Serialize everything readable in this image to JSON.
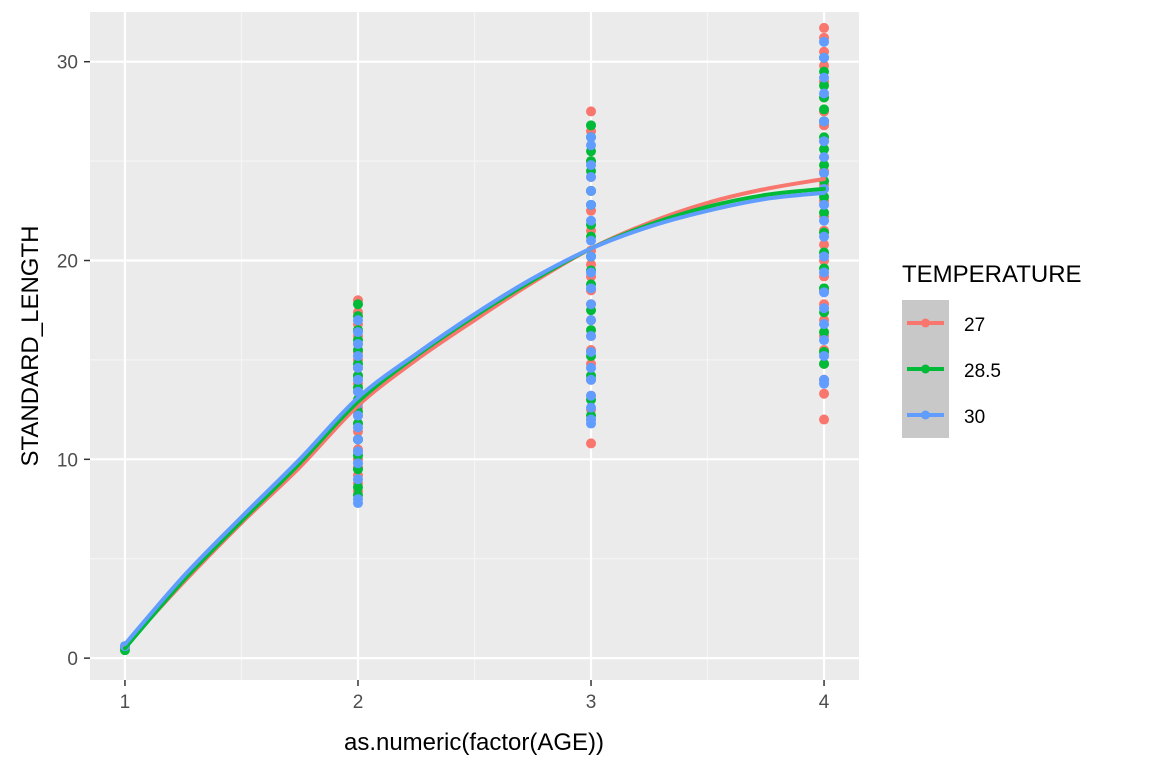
{
  "chart_data": {
    "type": "scatter",
    "xlabel": "as.numeric(factor(AGE))",
    "ylabel": "STANDARD_LENGTH",
    "xlim": [
      0.85,
      4.15
    ],
    "ylim": [
      -1.1,
      32.5
    ],
    "x_ticks": [
      1,
      2,
      3,
      4
    ],
    "y_ticks": [
      0,
      10,
      20,
      30
    ],
    "grid": true,
    "background": "#ebebeb",
    "legend": {
      "title": "TEMPERATURE",
      "placement": "right"
    },
    "series": [
      {
        "name": "27",
        "color": "#f8766d",
        "points": [
          [
            1,
            0.6
          ],
          [
            1,
            0.5
          ],
          [
            2,
            18.0
          ],
          [
            2,
            17.4
          ],
          [
            2,
            16.8
          ],
          [
            2,
            16.2
          ],
          [
            2,
            15.8
          ],
          [
            2,
            15.4
          ],
          [
            2,
            15.0
          ],
          [
            2,
            14.6
          ],
          [
            2,
            14.2
          ],
          [
            2,
            13.8
          ],
          [
            2,
            13.4
          ],
          [
            2,
            13.0
          ],
          [
            2,
            12.6
          ],
          [
            2,
            12.2
          ],
          [
            2,
            11.8
          ],
          [
            2,
            11.4
          ],
          [
            2,
            11.0
          ],
          [
            2,
            10.5
          ],
          [
            2,
            10.0
          ],
          [
            2,
            9.6
          ],
          [
            2,
            9.2
          ],
          [
            2,
            8.8
          ],
          [
            2,
            8.4
          ],
          [
            3,
            27.5
          ],
          [
            3,
            26.5
          ],
          [
            3,
            25.0
          ],
          [
            3,
            24.2
          ],
          [
            3,
            23.5
          ],
          [
            3,
            22.5
          ],
          [
            3,
            21.5
          ],
          [
            3,
            20.5
          ],
          [
            3,
            19.8
          ],
          [
            3,
            19.2
          ],
          [
            3,
            18.5
          ],
          [
            3,
            17.8
          ],
          [
            3,
            17.0
          ],
          [
            3,
            16.2
          ],
          [
            3,
            15.5
          ],
          [
            3,
            14.8
          ],
          [
            3,
            14.0
          ],
          [
            3,
            13.2
          ],
          [
            3,
            12.5
          ],
          [
            3,
            12.0
          ],
          [
            3,
            10.8
          ],
          [
            4,
            31.7
          ],
          [
            4,
            31.2
          ],
          [
            4,
            30.5
          ],
          [
            4,
            29.8
          ],
          [
            4,
            29.0
          ],
          [
            4,
            28.2
          ],
          [
            4,
            27.5
          ],
          [
            4,
            26.8
          ],
          [
            4,
            26.0
          ],
          [
            4,
            25.2
          ],
          [
            4,
            24.5
          ],
          [
            4,
            23.8
          ],
          [
            4,
            23.0
          ],
          [
            4,
            22.2
          ],
          [
            4,
            21.5
          ],
          [
            4,
            20.8
          ],
          [
            4,
            20.0
          ],
          [
            4,
            19.2
          ],
          [
            4,
            18.5
          ],
          [
            4,
            17.8
          ],
          [
            4,
            17.0
          ],
          [
            4,
            16.2
          ],
          [
            4,
            15.5
          ],
          [
            4,
            14.8
          ],
          [
            4,
            14.0
          ],
          [
            4,
            13.3
          ],
          [
            4,
            12.0
          ]
        ],
        "fit": [
          [
            1,
            0.6
          ],
          [
            1.25,
            3.8
          ],
          [
            1.5,
            6.8
          ],
          [
            1.75,
            9.6
          ],
          [
            2,
            12.7
          ],
          [
            2.25,
            15.0
          ],
          [
            2.5,
            17.0
          ],
          [
            2.75,
            18.9
          ],
          [
            3,
            20.6
          ],
          [
            3.25,
            21.9
          ],
          [
            3.5,
            22.9
          ],
          [
            3.75,
            23.6
          ],
          [
            4,
            24.1
          ]
        ]
      },
      {
        "name": "28.5",
        "color": "#00ba38",
        "points": [
          [
            1,
            0.4
          ],
          [
            1,
            0.6
          ],
          [
            2,
            17.8
          ],
          [
            2,
            17.2
          ],
          [
            2,
            16.5
          ],
          [
            2,
            16.0
          ],
          [
            2,
            15.5
          ],
          [
            2,
            14.8
          ],
          [
            2,
            14.2
          ],
          [
            2,
            13.6
          ],
          [
            2,
            13.0
          ],
          [
            2,
            12.4
          ],
          [
            2,
            11.8
          ],
          [
            2,
            11.0
          ],
          [
            2,
            10.2
          ],
          [
            2,
            9.5
          ],
          [
            2,
            8.6
          ],
          [
            2,
            8.2
          ],
          [
            3,
            26.8
          ],
          [
            3,
            26.2
          ],
          [
            3,
            25.5
          ],
          [
            3,
            25.0
          ],
          [
            3,
            24.5
          ],
          [
            3,
            23.5
          ],
          [
            3,
            22.8
          ],
          [
            3,
            21.8
          ],
          [
            3,
            21.2
          ],
          [
            3,
            20.2
          ],
          [
            3,
            19.5
          ],
          [
            3,
            18.8
          ],
          [
            3,
            17.5
          ],
          [
            3,
            16.5
          ],
          [
            3,
            15.2
          ],
          [
            3,
            14.2
          ],
          [
            3,
            13.0
          ],
          [
            3,
            12.2
          ],
          [
            4,
            30.2
          ],
          [
            4,
            29.5
          ],
          [
            4,
            28.8
          ],
          [
            4,
            28.2
          ],
          [
            4,
            27.6
          ],
          [
            4,
            27.0
          ],
          [
            4,
            26.2
          ],
          [
            4,
            25.6
          ],
          [
            4,
            24.8
          ],
          [
            4,
            24.0
          ],
          [
            4,
            23.2
          ],
          [
            4,
            22.4
          ],
          [
            4,
            21.4
          ],
          [
            4,
            20.4
          ],
          [
            4,
            19.6
          ],
          [
            4,
            18.6
          ],
          [
            4,
            17.4
          ],
          [
            4,
            16.4
          ],
          [
            4,
            15.4
          ],
          [
            4,
            14.8
          ]
        ],
        "fit": [
          [
            1,
            0.5
          ],
          [
            1.25,
            3.9
          ],
          [
            1.5,
            6.9
          ],
          [
            1.75,
            9.8
          ],
          [
            2,
            12.9
          ],
          [
            2.25,
            15.2
          ],
          [
            2.5,
            17.2
          ],
          [
            2.75,
            19.0
          ],
          [
            3,
            20.6
          ],
          [
            3.25,
            21.8
          ],
          [
            3.5,
            22.7
          ],
          [
            3.75,
            23.3
          ],
          [
            4,
            23.6
          ]
        ]
      },
      {
        "name": "30",
        "color": "#619cff",
        "points": [
          [
            1,
            0.6
          ],
          [
            2,
            17.0
          ],
          [
            2,
            16.4
          ],
          [
            2,
            15.8
          ],
          [
            2,
            15.2
          ],
          [
            2,
            14.6
          ],
          [
            2,
            14.0
          ],
          [
            2,
            13.4
          ],
          [
            2,
            12.8
          ],
          [
            2,
            12.2
          ],
          [
            2,
            11.6
          ],
          [
            2,
            11.0
          ],
          [
            2,
            10.4
          ],
          [
            2,
            9.8
          ],
          [
            2,
            9.0
          ],
          [
            2,
            8.0
          ],
          [
            2,
            7.8
          ],
          [
            3,
            26.2
          ],
          [
            3,
            25.8
          ],
          [
            3,
            24.8
          ],
          [
            3,
            24.2
          ],
          [
            3,
            23.5
          ],
          [
            3,
            22.8
          ],
          [
            3,
            22.0
          ],
          [
            3,
            21.0
          ],
          [
            3,
            20.2
          ],
          [
            3,
            19.4
          ],
          [
            3,
            18.6
          ],
          [
            3,
            17.8
          ],
          [
            3,
            17.0
          ],
          [
            3,
            16.2
          ],
          [
            3,
            15.4
          ],
          [
            3,
            14.6
          ],
          [
            3,
            14.0
          ],
          [
            3,
            13.2
          ],
          [
            3,
            12.6
          ],
          [
            3,
            12.0
          ],
          [
            3,
            11.8
          ],
          [
            4,
            31.0
          ],
          [
            4,
            30.2
          ],
          [
            4,
            29.2
          ],
          [
            4,
            28.4
          ],
          [
            4,
            27.0
          ],
          [
            4,
            26.0
          ],
          [
            4,
            25.2
          ],
          [
            4,
            24.4
          ],
          [
            4,
            23.6
          ],
          [
            4,
            22.8
          ],
          [
            4,
            22.0
          ],
          [
            4,
            21.2
          ],
          [
            4,
            20.2
          ],
          [
            4,
            19.4
          ],
          [
            4,
            18.4
          ],
          [
            4,
            17.6
          ],
          [
            4,
            16.8
          ],
          [
            4,
            16.0
          ],
          [
            4,
            15.2
          ],
          [
            4,
            14.0
          ],
          [
            4,
            13.8
          ]
        ],
        "fit": [
          [
            1,
            0.7
          ],
          [
            1.25,
            4.1
          ],
          [
            1.5,
            7.1
          ],
          [
            1.75,
            10.0
          ],
          [
            2,
            13.1
          ],
          [
            2.25,
            15.3
          ],
          [
            2.5,
            17.3
          ],
          [
            2.75,
            19.1
          ],
          [
            3,
            20.6
          ],
          [
            3.25,
            21.7
          ],
          [
            3.5,
            22.5
          ],
          [
            3.75,
            23.1
          ],
          [
            4,
            23.4
          ]
        ]
      }
    ]
  }
}
